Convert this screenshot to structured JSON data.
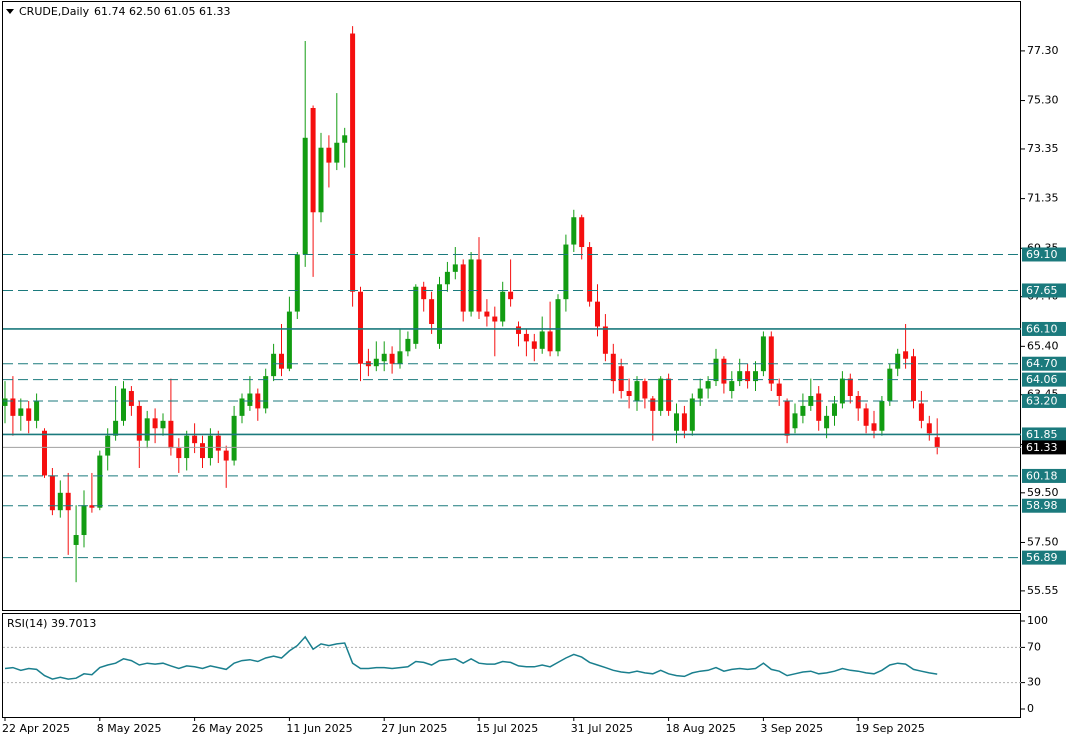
{
  "chart_data": [
    {
      "type": "candlestick",
      "title": "CRUDE,Daily",
      "ohlc_text": "61.74 62.50 61.05 61.33",
      "categories": [
        "22 Apr 2025",
        null,
        null,
        null,
        null,
        null,
        null,
        null,
        null,
        null,
        null,
        null,
        "8 May 2025",
        null,
        null,
        null,
        null,
        null,
        null,
        null,
        null,
        null,
        null,
        null,
        "26 May 2025",
        null,
        null,
        null,
        null,
        null,
        null,
        null,
        null,
        null,
        null,
        null,
        "11 Jun 2025",
        null,
        null,
        null,
        null,
        null,
        null,
        null,
        null,
        null,
        null,
        null,
        "27 Jun 2025",
        null,
        null,
        null,
        null,
        null,
        null,
        null,
        null,
        null,
        null,
        null,
        "15 Jul 2025",
        null,
        null,
        null,
        null,
        null,
        null,
        null,
        null,
        null,
        null,
        null,
        "31 Jul 2025",
        null,
        null,
        null,
        null,
        null,
        null,
        null,
        null,
        null,
        null,
        null,
        "18 Aug 2025",
        null,
        null,
        null,
        null,
        null,
        null,
        null,
        null,
        null,
        null,
        null,
        "3 Sep 2025",
        null,
        null,
        null,
        null,
        null,
        null,
        null,
        null,
        null,
        null,
        null,
        "19 Sep 2025",
        null,
        null,
        null,
        null,
        null,
        null,
        null,
        null,
        null,
        null
      ],
      "open": [
        63.0,
        63.3,
        62.6,
        62.9,
        62.4,
        62.0,
        60.2,
        58.8,
        59.5,
        57.4,
        57.8,
        59.0,
        58.9,
        61.0,
        61.8,
        62.4,
        63.6,
        63.0,
        61.6,
        62.5,
        62.1,
        62.4,
        61.3,
        60.9,
        61.8,
        61.5,
        60.9,
        61.8,
        61.2,
        60.8,
        62.6,
        63.0,
        63.5,
        62.9,
        64.2,
        65.1,
        64.5,
        66.8,
        69.1,
        75.0,
        70.8,
        73.4,
        72.8,
        73.6,
        78.0,
        67.6,
        64.8,
        64.6,
        64.8,
        65.1,
        64.7,
        65.2,
        65.5,
        67.8,
        67.3,
        65.5,
        67.9,
        68.4,
        68.7,
        66.8,
        68.9,
        66.8,
        66.6,
        66.4,
        67.6,
        66.2,
        65.9,
        65.6,
        65.3,
        66.0,
        65.2,
        67.3,
        69.5,
        70.6,
        69.4,
        67.2,
        66.2,
        65.1,
        64.6,
        63.6,
        63.2,
        64.0,
        63.3,
        62.8,
        64.1,
        62.0,
        62.7,
        62.0,
        63.3,
        63.7,
        64.0,
        64.9,
        63.6,
        64.0,
        64.4,
        64.0,
        64.4,
        65.8,
        63.9,
        63.2,
        62.1,
        62.6,
        63.0,
        63.5,
        62.1,
        62.6,
        63.1,
        64.1,
        63.4,
        62.9,
        62.3,
        62.0,
        63.2,
        64.5,
        65.2,
        65.0,
        63.1,
        62.3,
        61.74
      ],
      "high": [
        64.0,
        64.2,
        63.3,
        63.2,
        63.5,
        62.1,
        60.5,
        60.0,
        60.3,
        59.0,
        59.6,
        60.3,
        61.2,
        62.1,
        63.8,
        64.0,
        63.8,
        63.2,
        62.8,
        62.9,
        62.7,
        64.1,
        61.7,
        62.0,
        62.3,
        61.8,
        62.1,
        62.0,
        61.4,
        63.0,
        63.5,
        64.2,
        63.7,
        64.5,
        65.5,
        66.3,
        67.4,
        69.2,
        77.7,
        75.1,
        74.0,
        73.9,
        75.6,
        74.2,
        78.3,
        67.8,
        65.3,
        65.6,
        65.6,
        65.4,
        66.1,
        66.0,
        67.9,
        68.0,
        67.6,
        68.2,
        68.8,
        69.4,
        68.9,
        69.2,
        69.8,
        67.3,
        67.0,
        68.0,
        68.9,
        66.4,
        66.1,
        65.9,
        66.6,
        67.2,
        67.5,
        69.9,
        70.9,
        70.7,
        69.6,
        67.9,
        66.7,
        65.5,
        64.9,
        64.1,
        64.2,
        64.1,
        63.4,
        64.2,
        64.3,
        63.1,
        63.0,
        63.5,
        64.1,
        64.2,
        65.3,
        65.0,
        64.4,
        64.9,
        64.7,
        64.8,
        66.0,
        66.0,
        64.1,
        63.3,
        63.1,
        63.5,
        64.1,
        63.8,
        63.0,
        63.4,
        64.4,
        64.3,
        63.6,
        63.1,
        62.8,
        63.4,
        64.7,
        65.3,
        66.3,
        65.3,
        63.6,
        62.6,
        62.5
      ],
      "low": [
        62.3,
        61.8,
        62.0,
        61.9,
        62.1,
        60.1,
        58.6,
        58.5,
        57.0,
        55.9,
        57.3,
        58.7,
        58.8,
        60.4,
        61.6,
        62.2,
        62.6,
        60.5,
        61.3,
        61.5,
        61.8,
        61.0,
        60.3,
        60.4,
        61.1,
        60.5,
        60.6,
        60.7,
        59.7,
        60.6,
        62.3,
        62.8,
        62.4,
        62.7,
        64.0,
        64.2,
        64.4,
        66.5,
        68.6,
        68.2,
        70.4,
        71.8,
        72.5,
        72.6,
        67.0,
        64.0,
        64.2,
        64.4,
        64.4,
        64.3,
        64.5,
        65.0,
        65.3,
        66.8,
        65.9,
        65.3,
        67.6,
        68.1,
        66.4,
        66.6,
        66.5,
        66.2,
        65.0,
        66.2,
        67.0,
        65.4,
        65.0,
        64.8,
        65.1,
        65.0,
        65.0,
        66.8,
        69.2,
        68.9,
        67.0,
        65.8,
        64.8,
        63.5,
        63.3,
        62.9,
        62.8,
        62.9,
        61.6,
        62.6,
        62.6,
        61.5,
        61.7,
        61.8,
        63.0,
        63.3,
        63.8,
        63.5,
        63.3,
        63.8,
        63.7,
        63.6,
        64.2,
        63.6,
        63.0,
        61.5,
        61.9,
        62.3,
        62.8,
        62.0,
        61.7,
        62.2,
        62.9,
        63.1,
        62.4,
        61.9,
        61.7,
        61.8,
        63.0,
        64.2,
        64.5,
        62.9,
        62.1,
        61.6,
        61.05
      ],
      "close": [
        63.3,
        62.6,
        62.9,
        62.4,
        63.2,
        60.2,
        58.8,
        59.5,
        58.8,
        57.8,
        59.0,
        58.9,
        61.0,
        61.8,
        62.4,
        63.7,
        63.0,
        61.6,
        62.5,
        62.1,
        62.4,
        61.3,
        60.9,
        61.8,
        61.5,
        60.9,
        61.8,
        61.2,
        60.8,
        62.6,
        63.3,
        63.5,
        62.9,
        64.2,
        65.1,
        64.5,
        66.8,
        69.1,
        73.8,
        70.8,
        73.4,
        72.8,
        73.6,
        73.9,
        67.6,
        64.7,
        64.6,
        64.9,
        65.1,
        64.7,
        65.2,
        65.7,
        67.8,
        67.3,
        66.3,
        67.9,
        68.4,
        68.7,
        66.8,
        68.9,
        66.8,
        66.6,
        66.4,
        67.6,
        67.3,
        65.9,
        65.6,
        65.3,
        66.0,
        65.2,
        67.3,
        69.5,
        70.6,
        69.4,
        67.2,
        66.2,
        65.1,
        64.0,
        63.6,
        63.4,
        64.0,
        63.3,
        62.8,
        64.1,
        62.8,
        62.7,
        62.0,
        63.3,
        63.7,
        64.0,
        64.9,
        63.9,
        64.0,
        64.4,
        64.0,
        64.4,
        65.8,
        63.9,
        63.4,
        61.8,
        62.7,
        63.0,
        63.4,
        62.4,
        62.6,
        63.1,
        64.1,
        63.4,
        62.9,
        62.2,
        62.0,
        63.2,
        64.5,
        65.1,
        64.9,
        63.2,
        62.4,
        61.9,
        61.33
      ],
      "up_color": "#129c12",
      "down_color": "#f50f0f",
      "ylim": [
        54.78,
        79.35
      ],
      "yticks": [
        {
          "value": 77.3,
          "label": "77.30"
        },
        {
          "value": 75.3,
          "label": "75.30"
        },
        {
          "value": 73.35,
          "label": "73.35"
        },
        {
          "value": 71.35,
          "label": "71.35"
        },
        {
          "value": 69.35,
          "label": "69.35"
        },
        {
          "value": 67.4,
          "label": "67.40"
        },
        {
          "value": 65.4,
          "label": "65.40"
        },
        {
          "value": 63.45,
          "label": "63.45"
        },
        {
          "value": 61.45,
          "label": "61.45"
        },
        {
          "value": 59.5,
          "label": "59.50"
        },
        {
          "value": 57.5,
          "label": "57.50"
        },
        {
          "value": 55.55,
          "label": "55.55"
        }
      ],
      "levels": [
        {
          "value": 69.1,
          "label": "69.10",
          "style": "dashed"
        },
        {
          "value": 67.65,
          "label": "67.65",
          "style": "dashed"
        },
        {
          "value": 66.1,
          "label": "66.10",
          "style": "solid"
        },
        {
          "value": 64.7,
          "label": "64.70",
          "style": "dashed"
        },
        {
          "value": 64.06,
          "label": "64.06",
          "style": "dashed"
        },
        {
          "value": 63.2,
          "label": "63.20",
          "style": "dashed"
        },
        {
          "value": 61.85,
          "label": "61.85",
          "style": "solid"
        },
        {
          "value": 60.18,
          "label": "60.18",
          "style": "dashed"
        },
        {
          "value": 58.98,
          "label": "58.98",
          "style": "dashed"
        },
        {
          "value": 56.89,
          "label": "56.89",
          "style": "dashed"
        }
      ],
      "level_color": "#1b7a7d",
      "last_price": {
        "value": 61.33,
        "label": "61.33"
      }
    },
    {
      "type": "line",
      "title": "RSI(14) 39.7013",
      "values": [
        46,
        47,
        44,
        46,
        45,
        38,
        34,
        36,
        34,
        35,
        40,
        39,
        47,
        50,
        52,
        57,
        55,
        50,
        52,
        51,
        52,
        49,
        46,
        49,
        48,
        46,
        49,
        47,
        45,
        52,
        55,
        56,
        54,
        58,
        60,
        58,
        66,
        72,
        82,
        68,
        74,
        72,
        74,
        75,
        52,
        46,
        46,
        47,
        47,
        46,
        47,
        48,
        54,
        53,
        50,
        55,
        56,
        57,
        52,
        57,
        52,
        51,
        51,
        54,
        53,
        49,
        48,
        48,
        50,
        48,
        53,
        58,
        62,
        59,
        53,
        50,
        47,
        44,
        42,
        41,
        43,
        41,
        40,
        44,
        40,
        38,
        37,
        41,
        43,
        44,
        47,
        43,
        45,
        46,
        45,
        46,
        52,
        45,
        43,
        38,
        40,
        42,
        43,
        40,
        41,
        43,
        46,
        44,
        43,
        41,
        40,
        44,
        50,
        52,
        51,
        45,
        43,
        41,
        39.7013
      ],
      "color": "#1a7f8e",
      "ylim": [
        0,
        100
      ],
      "yticks": [
        0,
        30,
        70,
        100
      ],
      "levels": [
        70,
        30
      ]
    }
  ]
}
